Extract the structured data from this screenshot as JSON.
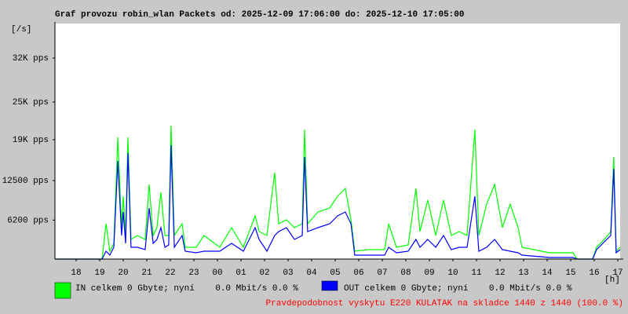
{
  "chart_data": {
    "type": "line",
    "title": "Graf provozu robin_wlan Packets od: 2025-12-09 17:06:00 do: 2025-12-10 17:05:00",
    "y_unit": "[/s]",
    "x_unit": "[h]",
    "footer": "Pravdepodobnost vyskytu E220 KULATAK na skladce 1440 z 1440 (100.0 %)",
    "xlim": [
      0,
      24
    ],
    "xticks": [
      {
        "value": 0.9,
        "label": "18"
      },
      {
        "value": 1.9,
        "label": "19"
      },
      {
        "value": 2.9,
        "label": "20"
      },
      {
        "value": 3.9,
        "label": "21"
      },
      {
        "value": 4.9,
        "label": "22"
      },
      {
        "value": 5.9,
        "label": "23"
      },
      {
        "value": 6.9,
        "label": "00"
      },
      {
        "value": 7.9,
        "label": "01"
      },
      {
        "value": 8.9,
        "label": "02"
      },
      {
        "value": 9.9,
        "label": "03"
      },
      {
        "value": 10.9,
        "label": "04"
      },
      {
        "value": 11.9,
        "label": "05"
      },
      {
        "value": 12.9,
        "label": "06"
      },
      {
        "value": 13.9,
        "label": "07"
      },
      {
        "value": 14.9,
        "label": "08"
      },
      {
        "value": 15.9,
        "label": "09"
      },
      {
        "value": 16.9,
        "label": "10"
      },
      {
        "value": 17.9,
        "label": "11"
      },
      {
        "value": 18.9,
        "label": "12"
      },
      {
        "value": 19.9,
        "label": "13"
      },
      {
        "value": 20.9,
        "label": "14"
      },
      {
        "value": 21.9,
        "label": "15"
      },
      {
        "value": 22.9,
        "label": "16"
      },
      {
        "value": 23.9,
        "label": "17"
      }
    ],
    "ylim": [
      0,
      37500
    ],
    "yticks": [
      {
        "value": 6200,
        "label": "6200 pps"
      },
      {
        "value": 12500,
        "label": "12500 pps"
      },
      {
        "value": 19000,
        "label": "19K pps"
      },
      {
        "value": 25000,
        "label": "25K pps"
      },
      {
        "value": 32000,
        "label": "32K pps"
      }
    ],
    "grid": false,
    "x": [
      0,
      2,
      2.17,
      2.33,
      2.5,
      2.67,
      2.83,
      2.9,
      3,
      3.1,
      3.23,
      3.5,
      3.83,
      4,
      4.17,
      4.33,
      4.5,
      4.67,
      4.83,
      4.93,
      5.07,
      5.4,
      5.53,
      6,
      6.33,
      7,
      7.5,
      8,
      8.5,
      8.67,
      9,
      9.33,
      9.5,
      9.83,
      10.17,
      10.5,
      10.6,
      10.73,
      11.17,
      11.67,
      12,
      12.33,
      12.57,
      12.73,
      13.33,
      14,
      14.17,
      14.5,
      15,
      15.33,
      15.5,
      15.83,
      16.17,
      16.5,
      16.83,
      17.17,
      17.5,
      17.83,
      18,
      18.33,
      18.67,
      19,
      19.33,
      19.67,
      19.83,
      21,
      22,
      22.17,
      22.83,
      23,
      23.33,
      23.6,
      23.73,
      23.83,
      24
    ],
    "series": [
      {
        "name": "IN celkem 0 Gbyte; nyní    0.0 Mbit/s 0.0 %",
        "color": "#00ff00",
        "values": [
          0,
          0,
          5625,
          1250,
          2500,
          19375,
          5000,
          10000,
          3750,
          19375,
          3125,
          3750,
          3125,
          11875,
          3750,
          5000,
          10625,
          3750,
          3750,
          21250,
          3750,
          5625,
          1875,
          1875,
          3750,
          1875,
          5000,
          1875,
          6875,
          4375,
          3750,
          13750,
          5625,
          6250,
          5000,
          5625,
          20625,
          5625,
          7500,
          8125,
          10000,
          11250,
          6250,
          1250,
          1500,
          1500,
          5625,
          1875,
          2250,
          11250,
          4375,
          9375,
          3750,
          9375,
          3750,
          4375,
          3750,
          20625,
          3750,
          8750,
          11875,
          5000,
          8750,
          5000,
          1875,
          1000,
          1000,
          0,
          0,
          1875,
          3125,
          4375,
          16250,
          1250,
          1875
        ]
      },
      {
        "name": "OUT celkem 0 Gbyte; nyní    0.0 Mbit/s 0.0 %",
        "color": "#0000ff",
        "values": [
          0,
          0,
          1250,
          625,
          1875,
          15625,
          3750,
          7500,
          2500,
          16875,
          1875,
          1875,
          1500,
          8125,
          2500,
          3125,
          5000,
          1875,
          2250,
          18125,
          1875,
          3750,
          1250,
          1000,
          1250,
          1250,
          2500,
          1250,
          5000,
          3125,
          1250,
          3750,
          4375,
          5000,
          3125,
          3750,
          16250,
          4375,
          5000,
          5625,
          6875,
          7500,
          5625,
          625,
          625,
          625,
          1875,
          1000,
          1250,
          3125,
          1875,
          3125,
          1875,
          3750,
          1500,
          1875,
          1875,
          10000,
          1250,
          1875,
          3125,
          1500,
          1250,
          1000,
          625,
          250,
          250,
          0,
          0,
          1500,
          2750,
          3750,
          14375,
          1000,
          1500
        ]
      }
    ]
  }
}
